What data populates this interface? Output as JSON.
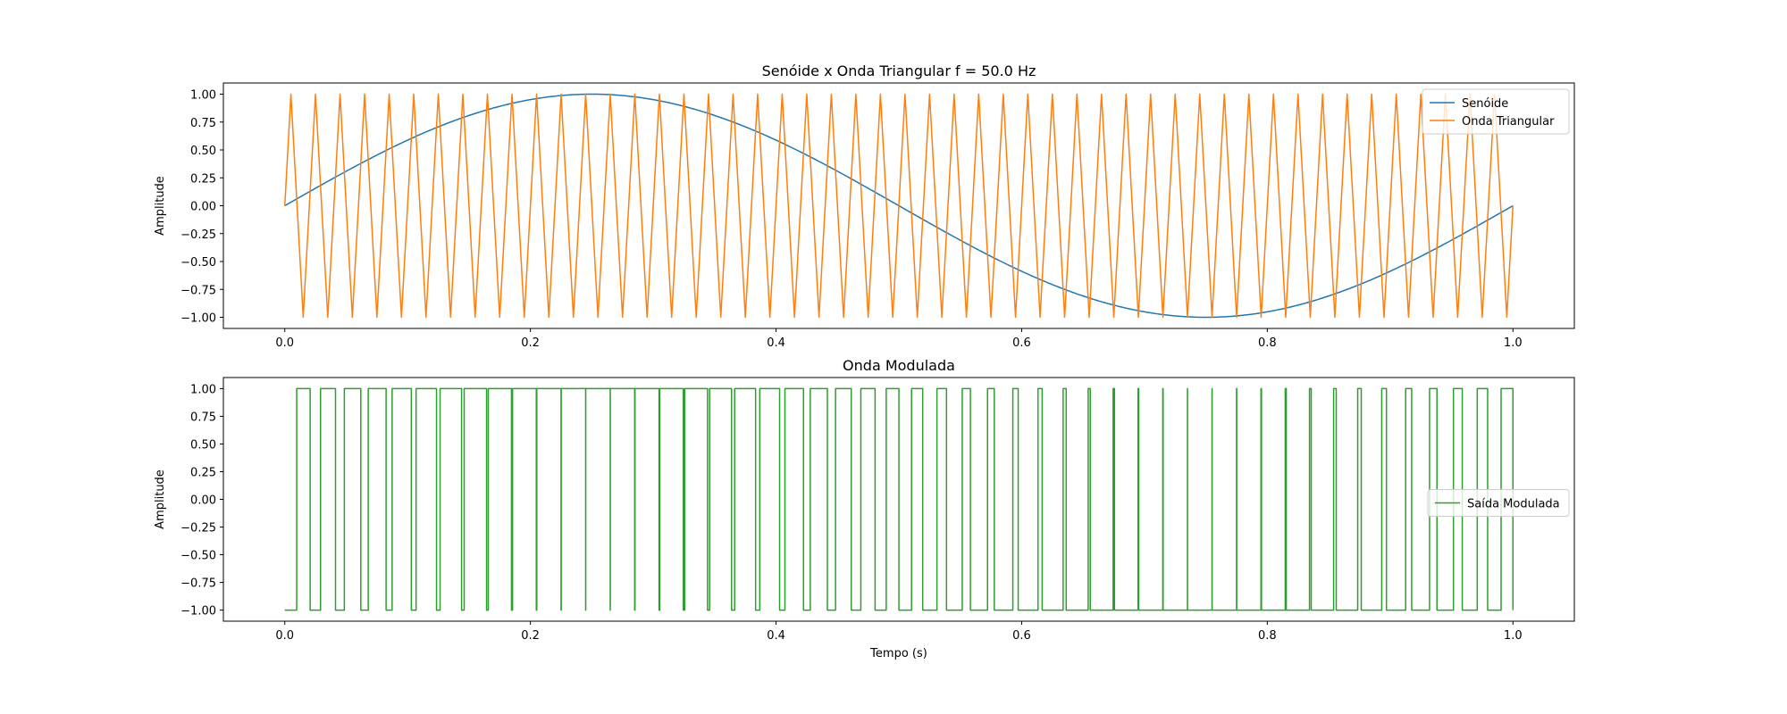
{
  "chart_data": [
    {
      "type": "line",
      "title": "Senóide x Onda Triangular f = 50.0 Hz",
      "xlabel": "",
      "ylabel": "Amplitude",
      "xlim": [
        -0.05,
        1.05
      ],
      "ylim": [
        -1.1,
        1.1
      ],
      "xticks": [
        "0.0",
        "0.2",
        "0.4",
        "0.6",
        "0.8",
        "1.0"
      ],
      "yticks": [
        "1.00",
        "0.75",
        "0.50",
        "0.25",
        "0.00",
        "−0.25",
        "−0.50",
        "−0.75",
        "−1.00"
      ],
      "legend_position": "top-right",
      "series": [
        {
          "name": "Senóide",
          "color": "#1f77b4",
          "shape": "sine",
          "frequency_hz": 1,
          "amplitude": 1
        },
        {
          "name": "Onda Triangular",
          "color": "#ff7f0e",
          "shape": "triangle",
          "frequency_hz": 50.0,
          "amplitude": 1
        }
      ]
    },
    {
      "type": "line",
      "title": "Onda Modulada",
      "xlabel": "Tempo (s)",
      "ylabel": "Amplitude",
      "xlim": [
        -0.05,
        1.05
      ],
      "ylim": [
        -1.1,
        1.1
      ],
      "xticks": [
        "0.0",
        "0.2",
        "0.4",
        "0.6",
        "0.8",
        "1.0"
      ],
      "yticks": [
        "1.00",
        "0.75",
        "0.50",
        "0.25",
        "0.00",
        "−0.25",
        "−0.50",
        "−0.75",
        "−1.00"
      ],
      "legend_position": "center-right",
      "series": [
        {
          "name": "Saída Modulada",
          "color": "#2ca02c",
          "shape": "pwm",
          "levels": [
            -1,
            1
          ]
        }
      ]
    }
  ]
}
